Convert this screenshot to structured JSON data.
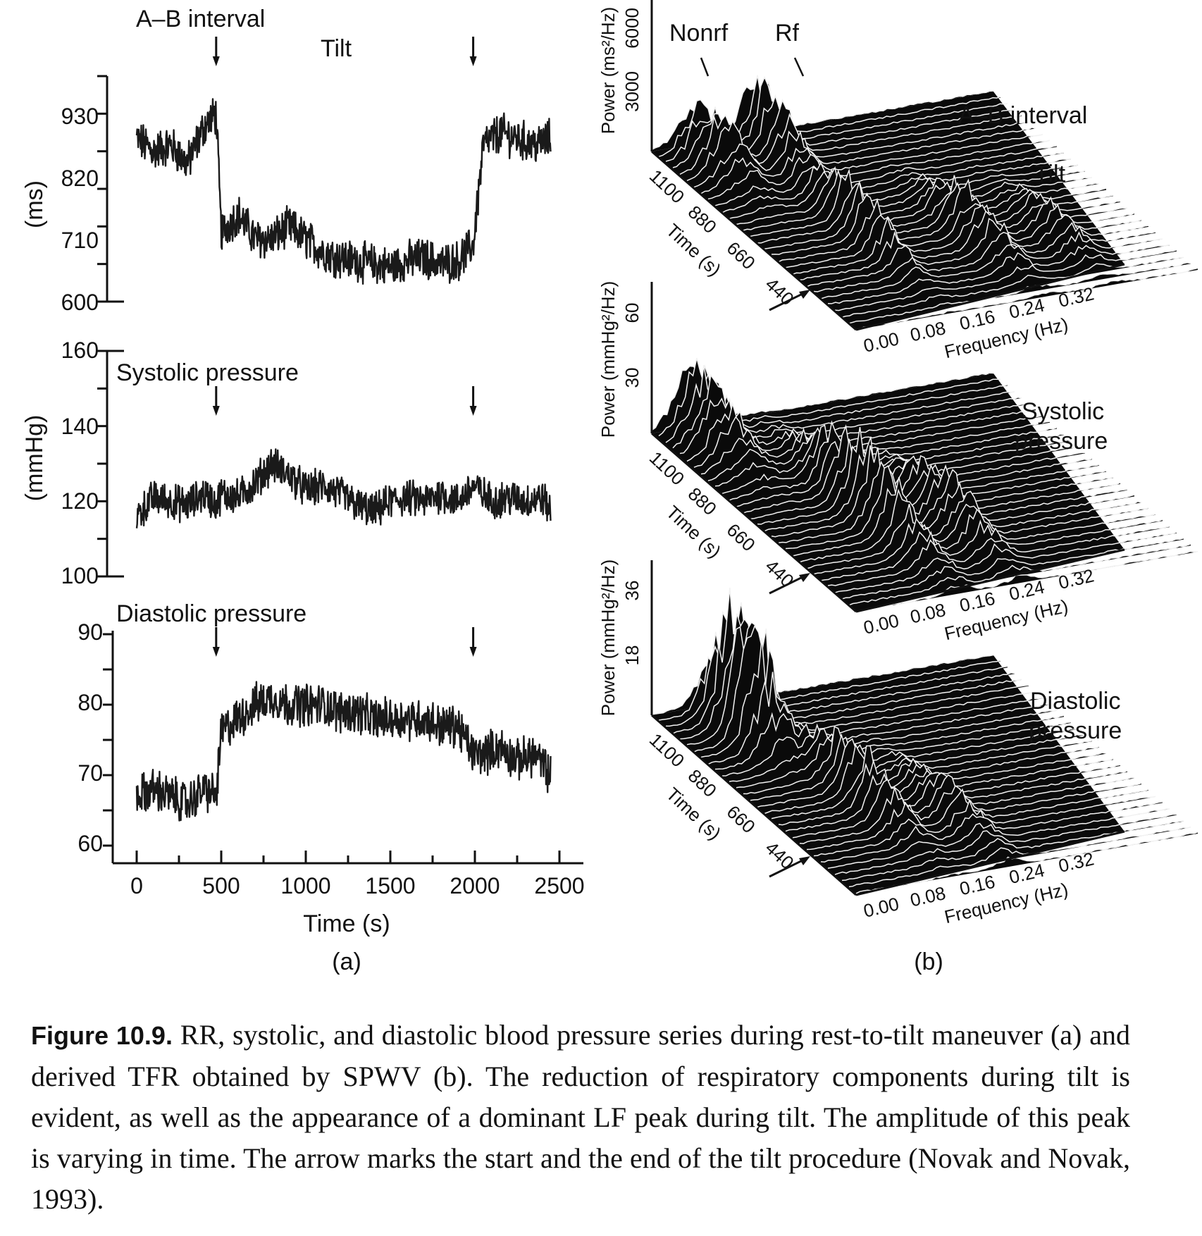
{
  "panel_a": {
    "sub_label": "(a)",
    "tilt_label": "Tilt",
    "x_axis_label": "Time (s)",
    "x_ticks": [
      "0",
      "500",
      "1000",
      "1500",
      "2000",
      "2500"
    ],
    "rr": {
      "title": "A–B interval",
      "unit": "(ms)",
      "y_ticks": [
        "930",
        "820",
        "710",
        "600"
      ]
    },
    "systolic": {
      "title": "Systolic pressure",
      "unit": "(mmHg)",
      "y_ticks": [
        "160",
        "140",
        "120",
        "100"
      ]
    },
    "diastolic": {
      "title": "Diastolic pressure",
      "y_ticks": [
        "90",
        "80",
        "70",
        "60"
      ]
    }
  },
  "panel_b": {
    "sub_label": "(b)",
    "freq_axis_label": "Frequency (Hz)",
    "freq_ticks": [
      "0.00",
      "0.08",
      "0.16",
      "0.24",
      "0.32"
    ],
    "time_axis_label": "Time (s)",
    "time_ticks": [
      "1100",
      "880",
      "660",
      "440"
    ],
    "rr": {
      "title": "A–B interval",
      "tilt_label": "Tilt",
      "power_label": "Power (ms²/Hz)",
      "power_ticks": [
        "3000",
        "6000"
      ],
      "annotation_nonrf": "Nonrf",
      "annotation_rf": "Rf"
    },
    "systolic": {
      "title_line1": "Systolic",
      "title_line2": "pressure",
      "power_label": "Power (mmHg²/Hz)",
      "power_ticks": [
        "30",
        "60"
      ]
    },
    "diastolic": {
      "title_line1": "Diastolic",
      "title_line2": "pressure",
      "power_label": "Power (mmHg²/Hz)",
      "power_ticks": [
        "18",
        "36"
      ]
    }
  },
  "caption": {
    "label": "Figure 10.9.",
    "text": "RR, systolic, and diastolic blood pressure series during rest-to-tilt maneuver (a) and derived TFR obtained by SPWV (b). The reduction of respiratory components during tilt is evident, as well as the appearance of a dominant LF peak during tilt. The amplitude of this peak is varying in time. The arrow marks the start and the end of the tilt procedure (Novak and Novak, 1993)."
  },
  "chart_data": [
    {
      "type": "line",
      "title": "A–B interval",
      "xlabel": "Time (s)",
      "ylabel": "(ms)",
      "xlim": [
        0,
        2500
      ],
      "ylim": [
        600,
        960
      ],
      "tilt_start": 470,
      "tilt_end": 1990,
      "x": [
        0,
        100,
        200,
        300,
        400,
        470,
        500,
        600,
        700,
        800,
        900,
        1000,
        1100,
        1200,
        1300,
        1400,
        1500,
        1600,
        1700,
        1800,
        1900,
        1990,
        2050,
        2150,
        2250,
        2350,
        2450
      ],
      "series": [
        {
          "values": [
            860,
            840,
            850,
            820,
            880,
            900,
            710,
            740,
            700,
            700,
            720,
            700,
            680,
            670,
            665,
            660,
            655,
            665,
            670,
            660,
            665,
            690,
            850,
            870,
            860,
            850,
            860
          ]
        }
      ]
    },
    {
      "type": "line",
      "title": "Systolic pressure",
      "xlabel": "Time (s)",
      "ylabel": "(mmHg)",
      "xlim": [
        0,
        2500
      ],
      "ylim": [
        100,
        160
      ],
      "tilt_start": 470,
      "tilt_end": 1990,
      "x": [
        0,
        100,
        200,
        300,
        400,
        470,
        500,
        600,
        700,
        800,
        900,
        1000,
        1100,
        1200,
        1300,
        1400,
        1500,
        1600,
        1700,
        1800,
        1900,
        1990,
        2100,
        2200,
        2300,
        2400,
        2450
      ],
      "series": [
        {
          "values": [
            116,
            121,
            120,
            119,
            122,
            119,
            122,
            121,
            125,
            130,
            127,
            123,
            124,
            122,
            119,
            117,
            120,
            121,
            120,
            122,
            120,
            124,
            120,
            121,
            120,
            121,
            117
          ]
        }
      ]
    },
    {
      "type": "line",
      "title": "Diastolic pressure",
      "xlabel": "Time (s)",
      "ylabel": "(mmHg)",
      "xlim": [
        0,
        2500
      ],
      "ylim": [
        60,
        90
      ],
      "tilt_start": 470,
      "tilt_end": 1990,
      "x": [
        0,
        100,
        200,
        300,
        400,
        470,
        500,
        600,
        700,
        800,
        900,
        1000,
        1100,
        1200,
        1300,
        1400,
        1500,
        1600,
        1700,
        1800,
        1900,
        1990,
        2050,
        2150,
        2250,
        2350,
        2450
      ],
      "series": [
        {
          "values": [
            67,
            68,
            67,
            66,
            68,
            67,
            76,
            78,
            80,
            81,
            80,
            80,
            80,
            79,
            79,
            78,
            78,
            78,
            78,
            77,
            77,
            73,
            73,
            74,
            72,
            73,
            70
          ]
        }
      ]
    },
    {
      "type": "area",
      "title": "A–B interval",
      "xlabel": "Frequency (Hz)",
      "ylabel": "Power (ms²/Hz)",
      "xlim": [
        0,
        0.36
      ],
      "ylim": [
        0,
        6000
      ],
      "time_ticks_s": [
        1100,
        880,
        660,
        440
      ]
    },
    {
      "type": "area",
      "title": "Systolic pressure",
      "xlabel": "Frequency (Hz)",
      "ylabel": "Power (mmHg²/Hz)",
      "xlim": [
        0,
        0.36
      ],
      "ylim": [
        0,
        60
      ],
      "time_ticks_s": [
        1100,
        880,
        660,
        440
      ]
    },
    {
      "type": "area",
      "title": "Diastolic pressure",
      "xlabel": "Frequency (Hz)",
      "ylabel": "Power (mmHg²/Hz)",
      "xlim": [
        0,
        0.36
      ],
      "ylim": [
        0,
        36
      ],
      "time_ticks_s": [
        1100,
        880,
        660,
        440
      ]
    }
  ]
}
